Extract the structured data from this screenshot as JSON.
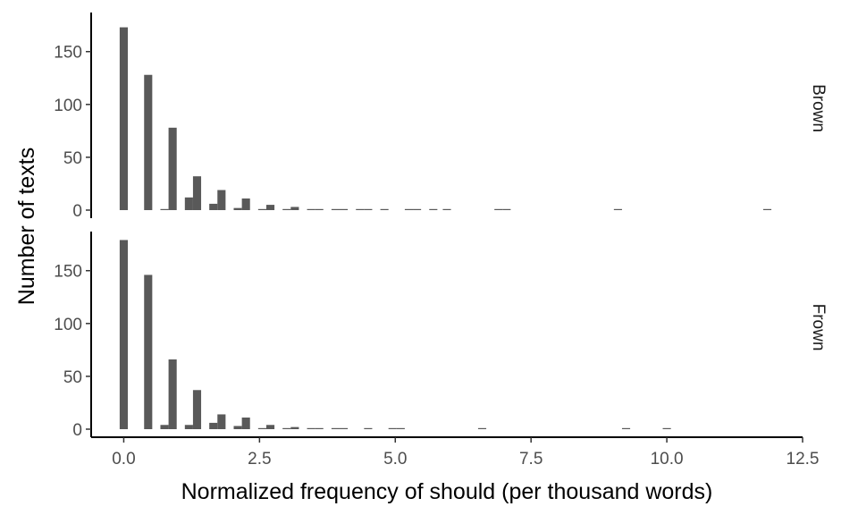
{
  "chart_data": {
    "type": "bar",
    "subtype": "histogram-faceted",
    "xlabel": "Normalized frequency of should (per thousand words)",
    "ylabel": "Number of texts",
    "x_ticks": [
      "0.0",
      "2.5",
      "5.0",
      "7.5",
      "10.0",
      "12.5"
    ],
    "x_tick_values": [
      0,
      2.5,
      5,
      7.5,
      10,
      12.5
    ],
    "xlim": [
      -0.6,
      12.5
    ],
    "y_ticks": [
      "0",
      "50",
      "100",
      "150"
    ],
    "y_tick_values": [
      0,
      50,
      100,
      150
    ],
    "ylim": [
      0,
      187
    ],
    "bar_width": 0.15,
    "bar_color": "#595959",
    "grid": false,
    "facets": [
      {
        "name": "Brown",
        "x": [
          0.0,
          0.45,
          0.75,
          0.9,
          1.2,
          1.35,
          1.65,
          1.8,
          2.1,
          2.25,
          2.55,
          2.7,
          3.0,
          3.15,
          3.45,
          3.6,
          3.9,
          4.05,
          4.35,
          4.5,
          4.8,
          5.25,
          5.4,
          5.7,
          5.95,
          6.9,
          7.05,
          9.1,
          11.85
        ],
        "values": [
          173,
          128,
          1,
          78,
          12,
          32,
          6,
          19,
          2,
          11,
          1,
          5,
          1,
          3,
          1,
          1,
          1,
          1,
          1,
          1,
          1,
          1,
          1,
          1,
          1,
          1,
          1,
          1,
          1
        ]
      },
      {
        "name": "Frown",
        "x": [
          0.0,
          0.45,
          0.75,
          0.9,
          1.2,
          1.35,
          1.65,
          1.8,
          2.1,
          2.25,
          2.55,
          2.7,
          3.0,
          3.15,
          3.45,
          3.6,
          3.9,
          4.05,
          4.5,
          4.95,
          5.1,
          6.6,
          9.25,
          10.0
        ],
        "values": [
          179,
          146,
          4,
          66,
          4,
          37,
          6,
          14,
          3,
          11,
          1,
          4,
          1,
          2,
          1,
          1,
          1,
          1,
          1,
          1,
          1,
          1,
          1,
          1
        ]
      }
    ]
  }
}
